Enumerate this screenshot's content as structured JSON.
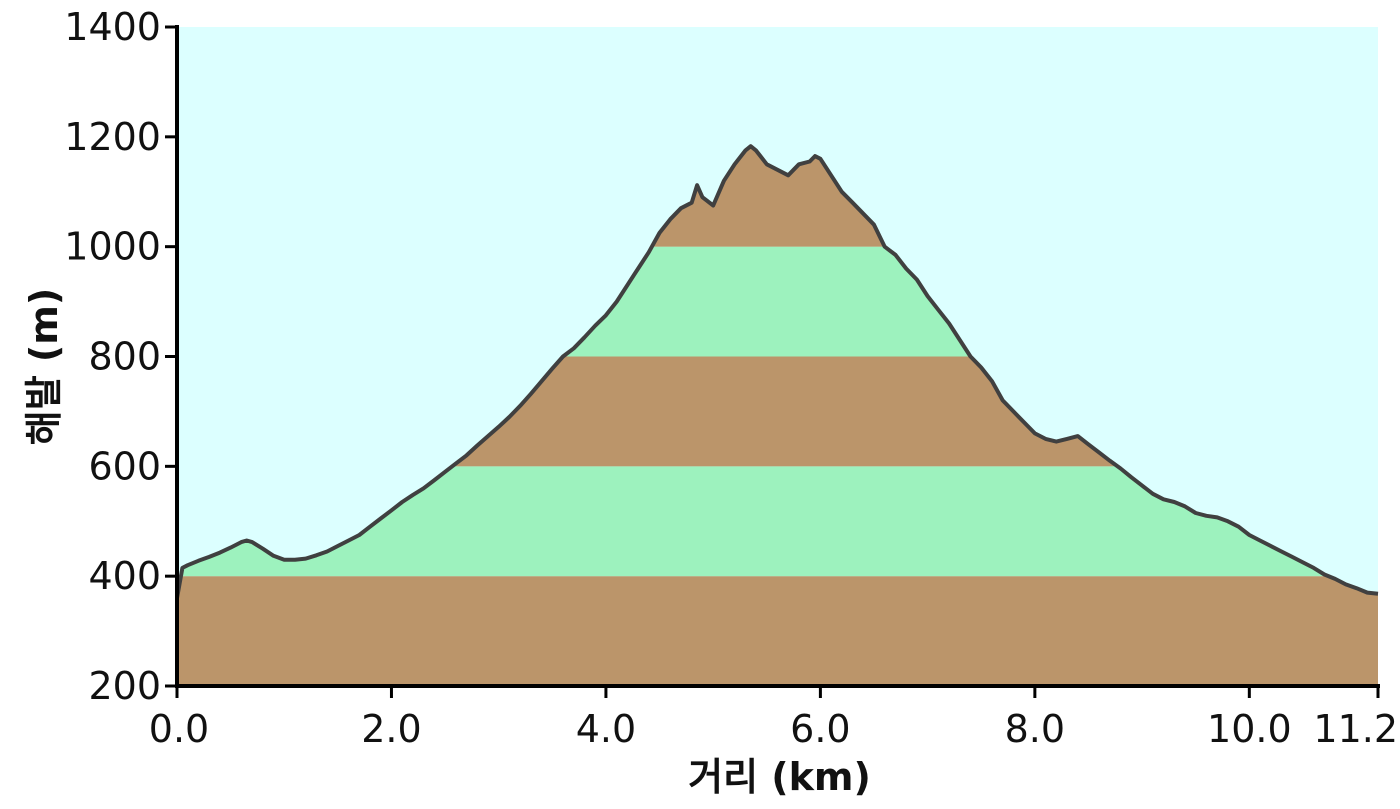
{
  "chart_data": {
    "type": "area",
    "title": "",
    "xlabel": "거리  (km)",
    "ylabel": "해발 (m)",
    "xlim": [
      0.0,
      11.2
    ],
    "ylim": [
      200,
      1400
    ],
    "x_ticks": [
      {
        "value": 0.0,
        "label": "0.0"
      },
      {
        "value": 2.0,
        "label": "2.0"
      },
      {
        "value": 4.0,
        "label": "4.0"
      },
      {
        "value": 6.0,
        "label": "6.0"
      },
      {
        "value": 8.0,
        "label": "8.0"
      },
      {
        "value": 10.0,
        "label": "10.0"
      },
      {
        "value": 11.2,
        "label": "11.2"
      }
    ],
    "y_ticks": [
      {
        "value": 200,
        "label": "200"
      },
      {
        "value": 400,
        "label": "400"
      },
      {
        "value": 600,
        "label": "600"
      },
      {
        "value": 800,
        "label": "800"
      },
      {
        "value": 1000,
        "label": "1000"
      },
      {
        "value": 1200,
        "label": "1200"
      },
      {
        "value": 1400,
        "label": "1400"
      }
    ],
    "grid": false,
    "legend": "none",
    "elevation_bands": [
      {
        "from": 200,
        "to": 400,
        "color": "#bb956a"
      },
      {
        "from": 400,
        "to": 600,
        "color": "#9df2be"
      },
      {
        "from": 600,
        "to": 800,
        "color": "#bb956a"
      },
      {
        "from": 800,
        "to": 1000,
        "color": "#9df2be"
      },
      {
        "from": 1000,
        "to": 1400,
        "color": "#bb956a"
      }
    ],
    "colors": {
      "sky": "#dcffff",
      "outline": "#404040",
      "axis": "#000000"
    },
    "series": [
      {
        "x": [
          0.0,
          0.05,
          0.1,
          0.2,
          0.3,
          0.4,
          0.5,
          0.6,
          0.65,
          0.7,
          0.8,
          0.9,
          1.0,
          1.1,
          1.2,
          1.3,
          1.4,
          1.5,
          1.6,
          1.7,
          1.8,
          1.9,
          2.0,
          2.1,
          2.2,
          2.3,
          2.4,
          2.5,
          2.6,
          2.7,
          2.8,
          2.9,
          3.0,
          3.1,
          3.2,
          3.3,
          3.4,
          3.5,
          3.6,
          3.7,
          3.8,
          3.9,
          4.0,
          4.1,
          4.2,
          4.3,
          4.4,
          4.5,
          4.6,
          4.7,
          4.8,
          4.85,
          4.9,
          5.0,
          5.1,
          5.2,
          5.3,
          5.35,
          5.4,
          5.5,
          5.6,
          5.7,
          5.8,
          5.9,
          5.95,
          6.0,
          6.1,
          6.2,
          6.3,
          6.4,
          6.5,
          6.6,
          6.7,
          6.8,
          6.9,
          7.0,
          7.1,
          7.2,
          7.3,
          7.4,
          7.5,
          7.6,
          7.7,
          7.8,
          7.9,
          8.0,
          8.1,
          8.2,
          8.3,
          8.4,
          8.5,
          8.6,
          8.7,
          8.8,
          8.9,
          9.0,
          9.1,
          9.2,
          9.3,
          9.4,
          9.5,
          9.6,
          9.7,
          9.8,
          9.9,
          10.0,
          10.1,
          10.2,
          10.3,
          10.4,
          10.5,
          10.6,
          10.7,
          10.8,
          10.9,
          11.0,
          11.1,
          11.2
        ],
        "values": [
          360,
          415,
          420,
          428,
          435,
          443,
          452,
          462,
          465,
          462,
          450,
          437,
          430,
          430,
          432,
          438,
          445,
          455,
          465,
          475,
          490,
          505,
          520,
          535,
          548,
          560,
          575,
          590,
          605,
          620,
          638,
          655,
          672,
          690,
          710,
          732,
          755,
          778,
          800,
          815,
          835,
          856,
          875,
          900,
          930,
          960,
          990,
          1025,
          1050,
          1070,
          1080,
          1112,
          1090,
          1075,
          1120,
          1150,
          1175,
          1183,
          1175,
          1150,
          1140,
          1130,
          1150,
          1155,
          1165,
          1160,
          1130,
          1100,
          1080,
          1060,
          1040,
          1000,
          985,
          960,
          940,
          910,
          885,
          860,
          830,
          800,
          780,
          755,
          720,
          700,
          680,
          660,
          650,
          645,
          650,
          655,
          640,
          625,
          610,
          596,
          580,
          565,
          550,
          540,
          535,
          527,
          515,
          510,
          507,
          500,
          490,
          475,
          465,
          455,
          445,
          435,
          425,
          415,
          403,
          395,
          385,
          378,
          370,
          368
        ]
      }
    ]
  }
}
